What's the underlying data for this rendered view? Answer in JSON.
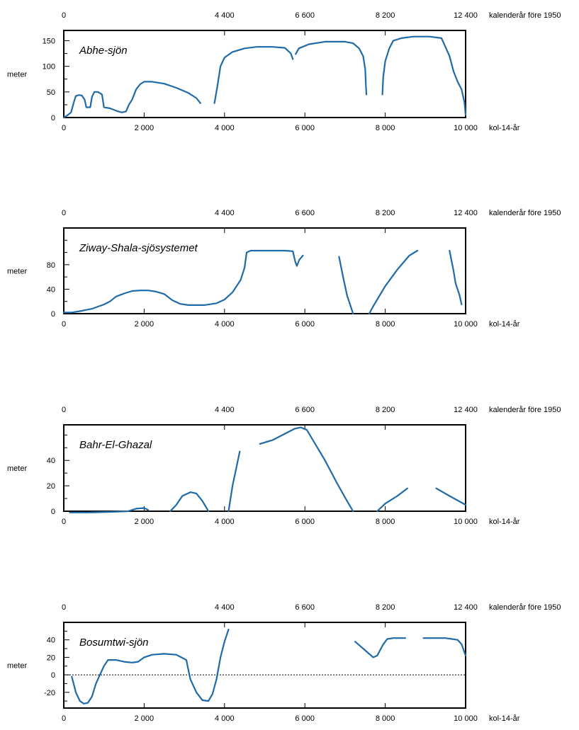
{
  "chart_data": [
    {
      "type": "line",
      "title": "Abhe-sjön",
      "ylabel": "meter",
      "xlabel": "kol-14-år",
      "x2label": "kalenderår före 1950",
      "xlim": [
        0,
        10000
      ],
      "ylim": [
        0,
        170
      ],
      "x_ticks": [
        0,
        2000,
        4000,
        6000,
        8000,
        10000
      ],
      "x_tick_labels": [
        "0",
        "2 000",
        "4 000",
        "6 000",
        "8 000",
        "10 000"
      ],
      "x2_ticks": [
        0,
        4000,
        6000,
        8000,
        10000
      ],
      "x2_tick_labels": [
        "0",
        "4 400",
        "6 600",
        "8 200",
        "12 400"
      ],
      "y_ticks": [
        0,
        50,
        100,
        150
      ],
      "y_tick_labels": [
        "0",
        "50",
        "100",
        "150"
      ],
      "y_minor_ticks": [
        25,
        75,
        125
      ],
      "segments": [
        [
          [
            0,
            0
          ],
          [
            100,
            5
          ],
          [
            180,
            10
          ],
          [
            250,
            30
          ],
          [
            300,
            42
          ],
          [
            380,
            44
          ],
          [
            450,
            43
          ],
          [
            520,
            35
          ],
          [
            560,
            20
          ],
          [
            620,
            20
          ],
          [
            660,
            20
          ],
          [
            700,
            40
          ],
          [
            760,
            50
          ],
          [
            850,
            50
          ],
          [
            950,
            45
          ],
          [
            1000,
            20
          ],
          [
            1150,
            18
          ],
          [
            1250,
            15
          ],
          [
            1350,
            12
          ],
          [
            1450,
            10
          ],
          [
            1550,
            12
          ],
          [
            1620,
            25
          ],
          [
            1700,
            35
          ],
          [
            1800,
            55
          ],
          [
            1900,
            65
          ],
          [
            2000,
            70
          ],
          [
            2200,
            70
          ],
          [
            2500,
            66
          ],
          [
            2800,
            58
          ],
          [
            3100,
            48
          ],
          [
            3300,
            38
          ],
          [
            3400,
            28
          ]
        ],
        [
          [
            3750,
            28
          ],
          [
            3820,
            60
          ],
          [
            3900,
            100
          ],
          [
            4000,
            117
          ],
          [
            4200,
            128
          ],
          [
            4500,
            135
          ],
          [
            4800,
            138
          ],
          [
            5200,
            138
          ],
          [
            5500,
            136
          ],
          [
            5650,
            125
          ],
          [
            5700,
            114
          ]
        ],
        [
          [
            5770,
            124
          ],
          [
            5850,
            135
          ],
          [
            6100,
            143
          ],
          [
            6500,
            148
          ],
          [
            7000,
            148
          ],
          [
            7200,
            145
          ],
          [
            7350,
            135
          ],
          [
            7450,
            120
          ],
          [
            7500,
            95
          ],
          [
            7520,
            60
          ],
          [
            7530,
            45
          ]
        ],
        [
          [
            7930,
            45
          ],
          [
            7950,
            80
          ],
          [
            8000,
            110
          ],
          [
            8100,
            135
          ],
          [
            8200,
            150
          ],
          [
            8400,
            155
          ],
          [
            8700,
            158
          ],
          [
            9100,
            158
          ],
          [
            9400,
            155
          ],
          [
            9600,
            120
          ],
          [
            9700,
            90
          ],
          [
            9800,
            70
          ],
          [
            9900,
            55
          ],
          [
            9970,
            30
          ],
          [
            10000,
            5
          ]
        ]
      ],
      "color": "#1f6aa8"
    },
    {
      "type": "line",
      "title": "Ziway-Shala-sjösystemet",
      "ylabel": "meter",
      "xlabel": "kol-14-år",
      "x2label": "kalenderår före 1950",
      "xlim": [
        0,
        10000
      ],
      "ylim": [
        0,
        140
      ],
      "x_ticks": [
        0,
        2000,
        4000,
        6000,
        8000,
        10000
      ],
      "x_tick_labels": [
        "0",
        "2 000",
        "4 000",
        "6 000",
        "8 000",
        "10 000"
      ],
      "x2_ticks": [
        0,
        4000,
        6000,
        8000,
        10000
      ],
      "x2_tick_labels": [
        "0",
        "4 400",
        "6 600",
        "8 200",
        "12 400"
      ],
      "y_ticks": [
        0,
        40,
        80
      ],
      "y_tick_labels": [
        "0",
        "40",
        "80"
      ],
      "y_minor_ticks": [
        20,
        60,
        100,
        120
      ],
      "segments": [
        [
          [
            0,
            2
          ],
          [
            200,
            2
          ],
          [
            400,
            4
          ],
          [
            700,
            8
          ],
          [
            1000,
            15
          ],
          [
            1150,
            20
          ],
          [
            1300,
            28
          ],
          [
            1500,
            33
          ],
          [
            1700,
            37
          ],
          [
            1900,
            38
          ],
          [
            2100,
            38
          ],
          [
            2300,
            36
          ],
          [
            2500,
            32
          ],
          [
            2700,
            22
          ],
          [
            2900,
            16
          ],
          [
            3100,
            14
          ],
          [
            3500,
            14
          ],
          [
            3800,
            17
          ],
          [
            4000,
            23
          ],
          [
            4200,
            35
          ],
          [
            4400,
            55
          ],
          [
            4500,
            75
          ],
          [
            4550,
            100
          ],
          [
            4650,
            103
          ],
          [
            5000,
            103
          ],
          [
            5500,
            103
          ],
          [
            5700,
            102
          ],
          [
            5760,
            85
          ],
          [
            5800,
            78
          ],
          [
            5860,
            88
          ],
          [
            5950,
            95
          ]
        ],
        [
          [
            6850,
            93
          ],
          [
            6950,
            60
          ],
          [
            7050,
            30
          ],
          [
            7150,
            10
          ],
          [
            7200,
            0
          ]
        ],
        [
          [
            7600,
            0
          ],
          [
            7700,
            12
          ],
          [
            8000,
            45
          ],
          [
            8300,
            72
          ],
          [
            8600,
            95
          ],
          [
            8800,
            103
          ]
        ],
        [
          [
            9600,
            103
          ],
          [
            9700,
            70
          ],
          [
            9750,
            50
          ],
          [
            9850,
            30
          ],
          [
            9900,
            15
          ]
        ]
      ],
      "color": "#1f6aa8"
    },
    {
      "type": "line",
      "title": "Bahr-El-Ghazal",
      "ylabel": "meter",
      "xlabel": "kol-14-år",
      "x2label": "kalenderår före 1950",
      "xlim": [
        0,
        10000
      ],
      "ylim": [
        0,
        68
      ],
      "x_ticks": [
        0,
        2000,
        4000,
        6000,
        8000,
        10000
      ],
      "x_tick_labels": [
        "0",
        "2 000",
        "4 000",
        "6 000",
        "8 000",
        "10 000"
      ],
      "x2_ticks": [
        0,
        4000,
        6000,
        8000,
        10000
      ],
      "x2_tick_labels": [
        "0",
        "4 400",
        "6 600",
        "8 200",
        "12 400"
      ],
      "y_ticks": [
        0,
        20,
        40
      ],
      "y_tick_labels": [
        "0",
        "20",
        "40"
      ],
      "y_minor_ticks": [
        10,
        30,
        50,
        60
      ],
      "segments": [
        [
          [
            150,
            -1
          ],
          [
            600,
            -1
          ],
          [
            1200,
            -0.5
          ],
          [
            1600,
            0
          ],
          [
            1800,
            2
          ],
          [
            2000,
            2.5
          ],
          [
            2100,
            1
          ]
        ],
        [
          [
            2650,
            0
          ],
          [
            2800,
            5
          ],
          [
            2950,
            12
          ],
          [
            3150,
            15
          ],
          [
            3300,
            14
          ],
          [
            3450,
            8
          ],
          [
            3600,
            0
          ]
        ],
        [
          [
            4100,
            0
          ],
          [
            4200,
            20
          ],
          [
            4300,
            35
          ],
          [
            4380,
            47
          ]
        ],
        [
          [
            4880,
            53
          ],
          [
            5200,
            56
          ],
          [
            5500,
            61
          ],
          [
            5750,
            65
          ],
          [
            5900,
            66
          ],
          [
            6050,
            64
          ],
          [
            6200,
            56
          ],
          [
            6500,
            40
          ],
          [
            6800,
            22
          ],
          [
            7050,
            8
          ],
          [
            7200,
            0
          ]
        ],
        [
          [
            7800,
            0
          ],
          [
            8000,
            6
          ],
          [
            8300,
            12
          ],
          [
            8550,
            18
          ]
        ],
        [
          [
            9270,
            18
          ],
          [
            9600,
            12
          ],
          [
            10000,
            5
          ]
        ]
      ],
      "color": "#1f6aa8"
    },
    {
      "type": "line",
      "title": "Bosumtwi-sjön",
      "ylabel": "meter",
      "xlabel": "kol-14-år",
      "x2label": "kalenderår före 1950",
      "xlim": [
        0,
        10000
      ],
      "ylim": [
        -38,
        60
      ],
      "x_ticks": [
        0,
        2000,
        4000,
        6000,
        8000,
        10000
      ],
      "x_tick_labels": [
        "0",
        "2 000",
        "4 000",
        "6 000",
        "8 000",
        "10 000"
      ],
      "x2_ticks": [
        0,
        4000,
        6000,
        8000,
        10000
      ],
      "x2_tick_labels": [
        "0",
        "4 400",
        "6 600",
        "8 200",
        "12 400"
      ],
      "y_ticks": [
        -20,
        0,
        20,
        40
      ],
      "y_tick_labels": [
        "-20",
        "0",
        "20",
        "40"
      ],
      "y_minor_ticks": [
        -30,
        -10,
        10,
        30,
        50
      ],
      "zero_line": true,
      "segments": [
        [
          [
            200,
            -2
          ],
          [
            300,
            -20
          ],
          [
            400,
            -30
          ],
          [
            500,
            -33
          ],
          [
            600,
            -32
          ],
          [
            700,
            -25
          ],
          [
            800,
            -10
          ],
          [
            900,
            0
          ],
          [
            1000,
            10
          ],
          [
            1100,
            17
          ],
          [
            1300,
            17
          ],
          [
            1500,
            15
          ],
          [
            1700,
            14
          ],
          [
            1850,
            15
          ],
          [
            2000,
            20
          ],
          [
            2200,
            23
          ],
          [
            2500,
            24
          ],
          [
            2800,
            23
          ],
          [
            3050,
            17
          ],
          [
            3150,
            -5
          ],
          [
            3300,
            -20
          ],
          [
            3450,
            -29
          ],
          [
            3600,
            -30
          ],
          [
            3700,
            -22
          ],
          [
            3800,
            -5
          ],
          [
            3900,
            20
          ],
          [
            4000,
            38
          ],
          [
            4100,
            52
          ]
        ],
        [
          [
            7250,
            38
          ],
          [
            7500,
            28
          ],
          [
            7700,
            20
          ],
          [
            7800,
            22
          ],
          [
            7950,
            35
          ],
          [
            8050,
            41
          ],
          [
            8200,
            42
          ],
          [
            8500,
            42
          ]
        ],
        [
          [
            8950,
            42
          ],
          [
            9300,
            42
          ],
          [
            9500,
            42
          ],
          [
            9800,
            40
          ],
          [
            9900,
            35
          ],
          [
            10000,
            22
          ]
        ]
      ],
      "color": "#1f6aa8"
    }
  ]
}
